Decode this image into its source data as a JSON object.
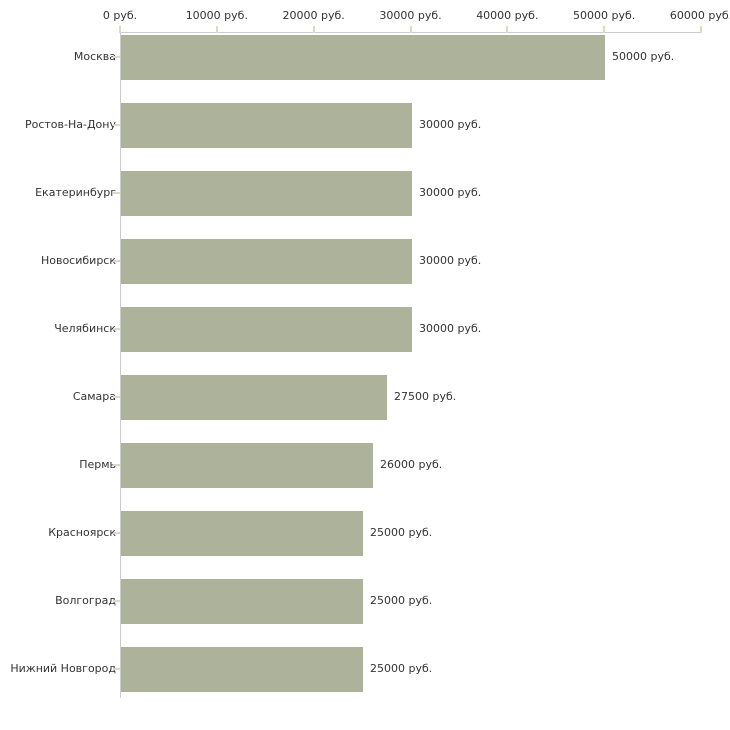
{
  "chart_data": {
    "type": "bar",
    "orientation": "horizontal",
    "title": "",
    "xlabel": "",
    "ylabel": "",
    "unit": "руб.",
    "categories": [
      "Москва",
      "Ростов-На-Дону",
      "Екатеринбург",
      "Новосибирск",
      "Челябинск",
      "Самара",
      "Пермь",
      "Красноярск",
      "Волгоград",
      "Нижний Новгород"
    ],
    "values": [
      50000,
      30000,
      30000,
      30000,
      30000,
      27500,
      26000,
      25000,
      25000,
      25000
    ],
    "value_labels": [
      "50000 руб.",
      "30000 руб.",
      "30000 руб.",
      "30000 руб.",
      "30000 руб.",
      "27500 руб.",
      "26000 руб.",
      "25000 руб.",
      "25000 руб.",
      "25000 руб."
    ],
    "x_ticks": [
      0,
      10000,
      20000,
      30000,
      40000,
      50000,
      60000
    ],
    "x_tick_labels": [
      "0 руб.",
      "10000 руб.",
      "20000 руб.",
      "30000 руб.",
      "40000 руб.",
      "50000 руб.",
      "60000 руб."
    ],
    "xlim": [
      0,
      60000
    ],
    "grid": false,
    "legend": "none",
    "colors": {
      "bar": "#adb39a",
      "axis_line": "#cccccc",
      "tick_mark": "#d9dbc3",
      "text": "#333333",
      "background": "#ffffff"
    }
  }
}
